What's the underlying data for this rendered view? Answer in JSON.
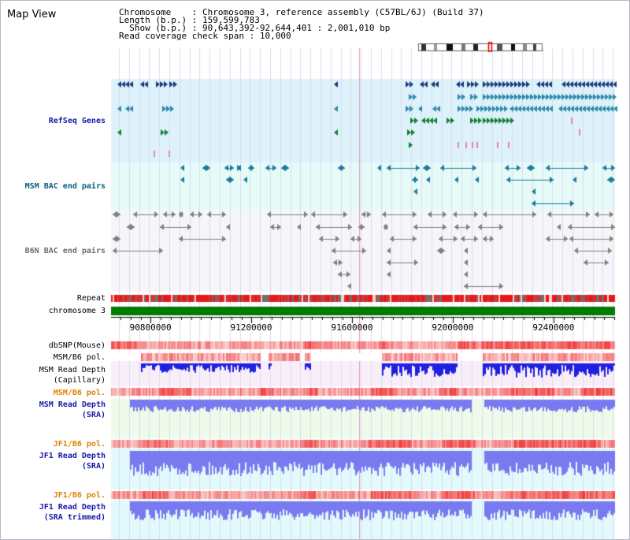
{
  "app": {
    "title": "Map View"
  },
  "info": {
    "chromosome_key": "Chromosome",
    "chromosome_value": "Chromosome 3, reference assembly (C57BL/6J) (Build 37)",
    "length_key": "Length (b.p.)",
    "length_value": "159,599,783",
    "show_key": "  Show (b.p.)",
    "show_value": "90,643,392-92,644,401 : 2,001,010 bp",
    "coverage_key": "Read coverage check span",
    "coverage_value": "10,000"
  },
  "tracks": [
    {
      "id": "refseq",
      "label": "RefSeq Genes",
      "color": "#1a1aa8",
      "bold": true
    },
    {
      "id": "msm-bac",
      "label": "MSM BAC end pairs",
      "color": "#006080",
      "bold": true
    },
    {
      "id": "b6n-bac",
      "label": "B6N BAC end pairs",
      "color": "#707070",
      "bold": true
    },
    {
      "id": "repeat",
      "label": "Repeat",
      "color": "#000000",
      "bold": false
    },
    {
      "id": "chromosome",
      "label": "chromosome 3",
      "color": "#000000",
      "bold": false
    },
    {
      "id": "dbsnp",
      "label": "dbSNP(Mouse)",
      "color": "#000000",
      "bold": false
    },
    {
      "id": "msm-b6-pol-1",
      "label": "MSM/B6 pol.",
      "color": "#000000",
      "bold": false
    },
    {
      "id": "msm-depth-cap",
      "label": "MSM Read Depth\n(Capillary)",
      "color": "#000000",
      "bold": false
    },
    {
      "id": "msm-b6-pol-2",
      "label": "MSM/B6 pol.",
      "color": "#e08000",
      "bold": true
    },
    {
      "id": "msm-depth-sra",
      "label": "MSM Read Depth\n(SRA)",
      "color": "#1a1aa8",
      "bold": true
    },
    {
      "id": "jf1-b6-pol-1",
      "label": "JF1/B6 pol.",
      "color": "#e08000",
      "bold": true
    },
    {
      "id": "jf1-depth-sra",
      "label": "JF1 Read Depth\n(SRA)",
      "color": "#1a1aa8",
      "bold": true
    },
    {
      "id": "jf1-b6-pol-2",
      "label": "JF1/B6 pol.",
      "color": "#e08000",
      "bold": true
    },
    {
      "id": "jf1-depth-trim",
      "label": "JF1 Read Depth\n(SRA trimmed)",
      "color": "#1a1aa8",
      "bold": true
    }
  ],
  "axis": {
    "start": 90643392,
    "end": 92644401,
    "ticks": [
      90800000,
      91200000,
      91600000,
      92000000,
      92400000
    ],
    "tick_labels": [
      "90800000",
      "91200000",
      "91600000",
      "92000000",
      "92400000"
    ]
  },
  "colors": {
    "refseq_bg": "#ddf2fb",
    "msm_bac_bg": "#e6faf8",
    "b6n_bac_bg": "#f6f6fa",
    "gene_dark": "#1a3a7a",
    "gene_teal": "#2a8aa8",
    "gene_green": "#108030",
    "repeat_red": "#e81818",
    "chromosome_green": "#007a00",
    "snp_pink": "#f6b6b6",
    "depth_capillary": "#2020e0",
    "depth_sra": "#7a7af0",
    "msm_sra_bg": "#eefbea",
    "jf1_sra_bg": "#e2fafc",
    "capillary_bg": "#f8eefa",
    "cursor_line": "#e0a0c0"
  },
  "ideogram": {
    "icon": "chromosome-ideogram",
    "highlight_fraction": 0.57
  }
}
